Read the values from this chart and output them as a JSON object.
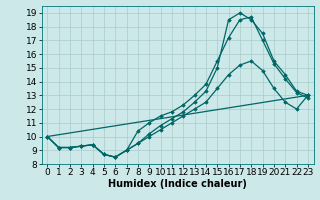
{
  "xlabel": "Humidex (Indice chaleur)",
  "background_color": "#cce8e8",
  "grid_color": "#aacccc",
  "line_color": "#006666",
  "xlim": [
    -0.5,
    23.5
  ],
  "ylim": [
    8,
    19.5
  ],
  "xticks": [
    0,
    1,
    2,
    3,
    4,
    5,
    6,
    7,
    8,
    9,
    10,
    11,
    12,
    13,
    14,
    15,
    16,
    17,
    18,
    19,
    20,
    21,
    22,
    23
  ],
  "yticks": [
    8,
    9,
    10,
    11,
    12,
    13,
    14,
    15,
    16,
    17,
    18,
    19
  ],
  "series": [
    {
      "x": [
        0,
        1,
        2,
        3,
        4,
        5,
        6,
        7,
        8,
        9,
        10,
        11,
        12,
        13,
        14,
        15,
        16,
        17,
        18,
        19,
        20,
        21,
        22,
        23
      ],
      "y": [
        10,
        9.2,
        9.2,
        9.3,
        9.4,
        8.7,
        8.5,
        9.0,
        10.4,
        11.0,
        11.5,
        11.8,
        12.3,
        13.0,
        13.8,
        15.5,
        17.2,
        18.5,
        18.7,
        17.0,
        15.3,
        14.2,
        13.2,
        12.8
      ],
      "marker": true
    },
    {
      "x": [
        0,
        1,
        2,
        3,
        4,
        5,
        6,
        7,
        8,
        9,
        10,
        11,
        12,
        13,
        14,
        15,
        16,
        17,
        18,
        19,
        20,
        21,
        22,
        23
      ],
      "y": [
        10,
        9.2,
        9.2,
        9.3,
        9.4,
        8.7,
        8.5,
        9.0,
        9.5,
        10.2,
        10.8,
        11.3,
        11.8,
        12.5,
        13.3,
        15.0,
        18.5,
        19.0,
        18.5,
        17.5,
        15.5,
        14.5,
        13.3,
        13.0
      ],
      "marker": true
    },
    {
      "x": [
        0,
        23
      ],
      "y": [
        10,
        13.0
      ],
      "marker": false
    },
    {
      "x": [
        0,
        1,
        2,
        3,
        4,
        5,
        6,
        7,
        8,
        9,
        10,
        11,
        12,
        13,
        14,
        15,
        16,
        17,
        18,
        19,
        20,
        21,
        22,
        23
      ],
      "y": [
        10,
        9.2,
        9.2,
        9.3,
        9.4,
        8.7,
        8.5,
        9.0,
        9.5,
        10.0,
        10.5,
        11.0,
        11.5,
        12.0,
        12.5,
        13.5,
        14.5,
        15.2,
        15.5,
        14.8,
        13.5,
        12.5,
        12.0,
        13.0
      ],
      "marker": true
    }
  ],
  "font_size": 6.5,
  "lw": 0.9
}
